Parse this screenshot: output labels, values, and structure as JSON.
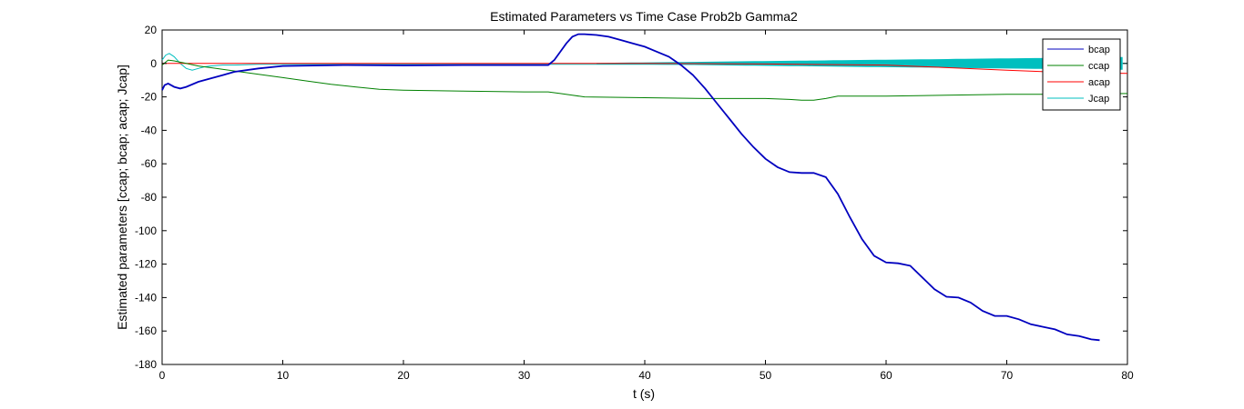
{
  "chart_data": {
    "type": "line",
    "title": "Estimated Parameters vs Time Case Prob2b Gamma2",
    "xlabel": "t (s)",
    "ylabel": "Estimated parameters [ccap; bcap; acap; Jcap]",
    "xlim": [
      0,
      80
    ],
    "ylim": [
      -180,
      20
    ],
    "xticks": [
      0,
      10,
      20,
      30,
      40,
      50,
      60,
      70,
      80
    ],
    "yticks": [
      20,
      0,
      -20,
      -40,
      -60,
      -80,
      -100,
      -120,
      -140,
      -160,
      -180
    ],
    "xtick_labels": [
      "0",
      "10",
      "20",
      "30",
      "40",
      "50",
      "60",
      "70",
      "80"
    ],
    "ytick_labels": [
      "20",
      "0",
      "-20",
      "-40",
      "-60",
      "-80",
      "-100",
      "-120",
      "-140",
      "-160",
      "-180"
    ],
    "grid": false,
    "legend_position": "top-right",
    "series": [
      {
        "name": "bcap",
        "color": "#0000bf",
        "x": [
          0,
          0.2,
          0.5,
          1,
          1.5,
          2,
          3,
          4,
          5,
          6,
          8,
          10,
          15,
          20,
          25,
          30,
          32,
          32.5,
          33,
          33.5,
          34,
          34.5,
          35,
          36,
          37,
          38,
          39,
          40,
          41,
          42,
          43,
          44,
          45,
          46,
          47,
          48,
          49,
          50,
          51,
          52,
          53,
          54,
          55,
          56,
          57,
          58,
          59,
          60,
          61,
          62,
          63,
          64,
          65,
          66,
          67,
          68,
          69,
          70,
          71,
          72,
          73,
          74,
          75,
          76,
          77,
          77.7
        ],
        "y": [
          -16,
          -13,
          -12,
          -14,
          -15,
          -14,
          -11,
          -9,
          -7,
          -5,
          -3,
          -1.5,
          -1,
          -1.2,
          -1,
          -1,
          -1,
          2,
          7,
          12,
          16,
          17.5,
          17.5,
          17,
          16,
          14,
          12,
          10,
          7,
          4,
          -1,
          -7,
          -15,
          -24,
          -33,
          -42,
          -50,
          -57,
          -62,
          -65,
          -65.5,
          -65.5,
          -68,
          -78,
          -92,
          -105,
          -115,
          -119,
          -119.5,
          -121,
          -128,
          -135,
          -139.5,
          -140,
          -143,
          -148,
          -151,
          -151,
          -153,
          -156,
          -157.5,
          -159,
          -162,
          -163,
          -165,
          -165.5
        ]
      },
      {
        "name": "ccap",
        "color": "#008000",
        "x": [
          0,
          0.5,
          1,
          2,
          3,
          4,
          5,
          6,
          8,
          10,
          12,
          14,
          16,
          18,
          20,
          25,
          30,
          32,
          33,
          34,
          35,
          40,
          45,
          50,
          52,
          53,
          54,
          55,
          56,
          60,
          65,
          70,
          75,
          80
        ],
        "y": [
          -1,
          2,
          1.5,
          0,
          -1.5,
          -2.5,
          -3.5,
          -4.5,
          -6.5,
          -8.5,
          -10.5,
          -12.5,
          -14,
          -15.5,
          -16,
          -16.5,
          -17,
          -17,
          -18,
          -19,
          -20,
          -20.5,
          -21,
          -21,
          -21.5,
          -22,
          -22,
          -21,
          -19.5,
          -19.5,
          -19,
          -18.5,
          -18.5,
          -18
        ]
      },
      {
        "name": "acap",
        "color": "#ff0000",
        "x": [
          0,
          10,
          20,
          30,
          40,
          50,
          60,
          65,
          70,
          75,
          80
        ],
        "y": [
          0,
          0,
          0,
          0,
          0,
          -0.3,
          -1,
          -2.5,
          -4,
          -5.5,
          -6
        ]
      },
      {
        "name": "Jcap",
        "color": "#00bfbf",
        "x": [
          0,
          0.3,
          0.6,
          1,
          1.5,
          2,
          2.5,
          3,
          3.5,
          4,
          5,
          6,
          8,
          10,
          15,
          20,
          30,
          40,
          45,
          50,
          55,
          60,
          65,
          70,
          75,
          80
        ],
        "y": [
          2,
          5,
          6,
          4,
          0,
          -3,
          -4,
          -3,
          -2,
          -1.5,
          -1,
          -1,
          -0.5,
          -0.5,
          -0.5,
          -0.5,
          -0.5,
          -0.5,
          -0.5,
          0,
          0,
          0,
          0,
          0,
          0,
          0
        ],
        "band_from_x": 36,
        "band_halfwidth_at_end": 3.5
      }
    ]
  }
}
